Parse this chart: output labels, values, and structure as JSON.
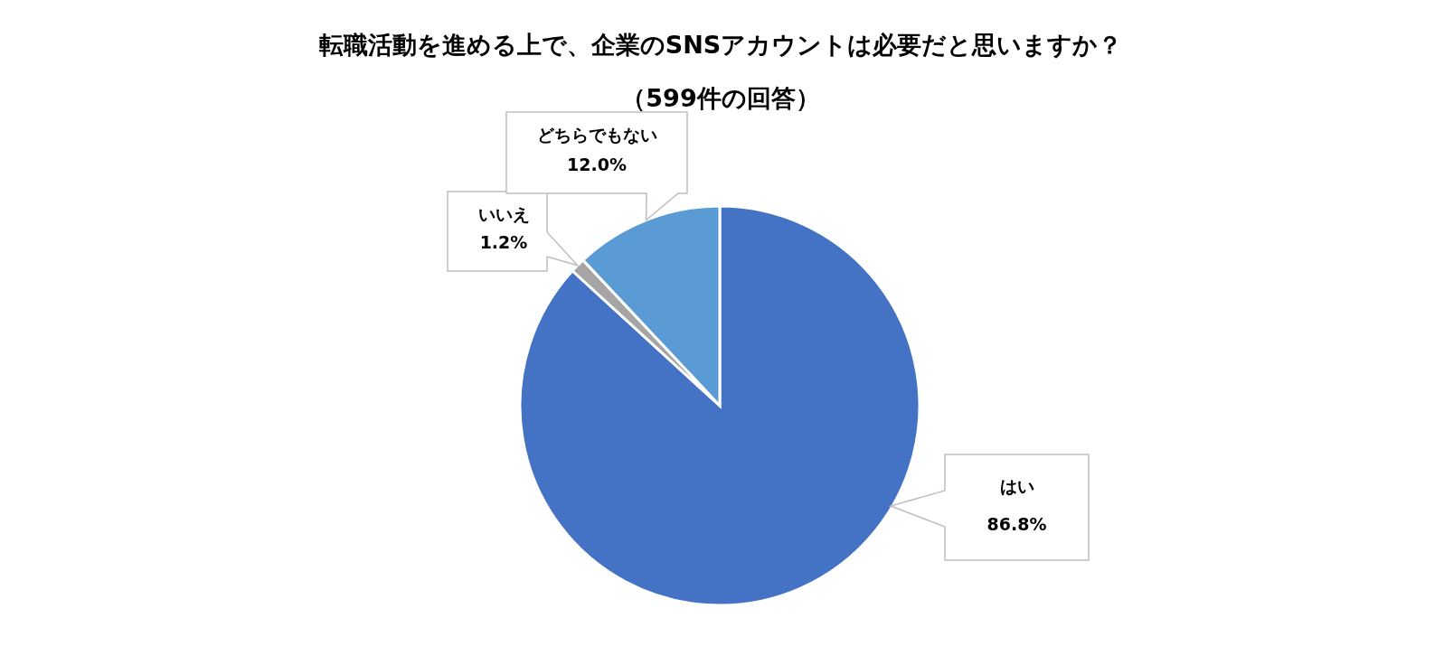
{
  "chart_data": {
    "type": "pie",
    "title": "転職活動を進める上で、企業のSNSアカウントは必要だと思いますか？",
    "subtitle": "（599件の回答）",
    "categories": [
      "はい",
      "いいえ",
      "どちらでもない"
    ],
    "values": [
      86.8,
      1.2,
      12.0
    ],
    "colors": [
      "#4472c4",
      "#a5a5a5",
      "#5b9bd5"
    ],
    "value_labels": [
      "86.8%",
      "1.2%",
      "12.0%"
    ]
  }
}
